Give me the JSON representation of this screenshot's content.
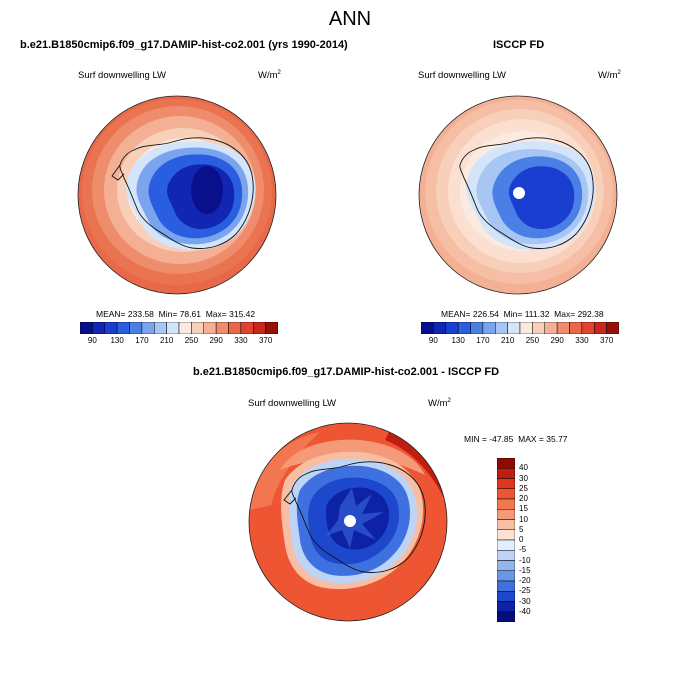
{
  "figure": {
    "title": "ANN"
  },
  "panels": [
    {
      "title": "b.e21.B1850cmip6.f09_g17.DAMIP-hist-co2.001 (yrs 1990-2014)",
      "variable": "Surf downwelling LW",
      "units": "W/m",
      "units_exp": "2",
      "stats": {
        "mean_label": "MEAN=",
        "mean": "233.58",
        "min_label": "Min=",
        "min": "78.61",
        "max_label": "Max=",
        "max": "315.42"
      }
    },
    {
      "title": "ISCCP FD",
      "variable": "Surf downwelling LW",
      "units": "W/m",
      "units_exp": "2",
      "stats": {
        "mean_label": "MEAN=",
        "mean": "226.54",
        "min_label": "Min=",
        "min": "111.32",
        "max_label": "Max=",
        "max": "292.38"
      }
    },
    {
      "title": "b.e21.B1850cmip6.f09_g17.DAMIP-hist-co2.001 - ISCCP FD",
      "variable": "Surf downwelling LW",
      "units": "W/m",
      "units_exp": "2",
      "stats": {
        "min_label": "MIN =",
        "min": "-47.85",
        "max_label": "MAX =",
        "max": "35.77"
      }
    }
  ],
  "colorbar_abs": {
    "ticks": [
      "90",
      "130",
      "170",
      "210",
      "250",
      "290",
      "330",
      "370"
    ],
    "colors": [
      "#0a0f8c",
      "#1226b4",
      "#1a3fd0",
      "#2a5ee0",
      "#4a7fe6",
      "#7aa4ee",
      "#a8c6f4",
      "#d4e4fa",
      "#fbeae0",
      "#f8cfb8",
      "#f4b094",
      "#ef8c6c",
      "#e9684a",
      "#e0442e",
      "#c8281c",
      "#961008"
    ]
  },
  "colorbar_diff": {
    "ticks": [
      "40",
      "30",
      "25",
      "20",
      "15",
      "10",
      "5",
      "0",
      "-5",
      "-10",
      "-15",
      "-20",
      "-25",
      "-30",
      "-40"
    ],
    "colors": [
      "#8c0c04",
      "#c01c10",
      "#e0361e",
      "#ee5532",
      "#f27650",
      "#f59a78",
      "#f8bea4",
      "#fbe0d4",
      "#e4eefb",
      "#bdd4f6",
      "#94b6f0",
      "#6a96e8",
      "#3e70e0",
      "#1e48cc",
      "#0e22a8",
      "#060c7a"
    ]
  },
  "chart_data": [
    {
      "type": "heatmap",
      "title": "b.e21.B1850cmip6.f09_g17.DAMIP-hist-co2.001 (yrs 1990-2014)",
      "variable": "Surf downwelling LW",
      "units": "W/m2",
      "levels": [
        90,
        130,
        170,
        210,
        250,
        290,
        330,
        370
      ],
      "mean": 233.58,
      "min": 78.61,
      "max": 315.42,
      "projection": "south polar stereographic",
      "bands_outer_to_inner": [
        315,
        300,
        285,
        270,
        250,
        230,
        190,
        140,
        100
      ]
    },
    {
      "type": "heatmap",
      "title": "ISCCP FD",
      "variable": "Surf downwelling LW",
      "units": "W/m2",
      "levels": [
        90,
        130,
        170,
        210,
        250,
        290,
        330,
        370
      ],
      "mean": 226.54,
      "min": 111.32,
      "max": 292.38,
      "projection": "south polar stereographic",
      "bands_outer_to_inner": [
        285,
        275,
        265,
        255,
        240,
        220,
        190,
        150,
        130
      ]
    },
    {
      "type": "heatmap",
      "title": "b.e21.B1850cmip6.f09_g17.DAMIP-hist-co2.001 - ISCCP FD",
      "variable": "Surf downwelling LW",
      "units": "W/m2",
      "levels": [
        -40,
        -30,
        -25,
        -20,
        -15,
        -10,
        -5,
        0,
        5,
        10,
        15,
        20,
        25,
        30,
        40
      ],
      "min": -47.85,
      "max": 35.77,
      "projection": "south polar stereographic",
      "bands_outer_to_inner": [
        22,
        26,
        18,
        12,
        -5,
        -25,
        -35
      ]
    }
  ]
}
